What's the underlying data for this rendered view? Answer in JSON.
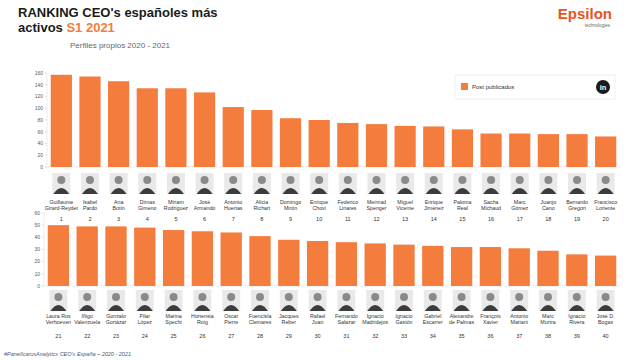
{
  "header": {
    "title_lines": [
      "RANKING CEO's españoles más",
      "activos"
    ],
    "highlight": "S1 2021",
    "subtitle": "Perfiles propios 2020 - 2021",
    "logo": "Epsilon",
    "logo_sub": "technologies",
    "social": "in"
  },
  "footer": "#PanelIcarusAnalytics CEO's España – 2020 - 2021",
  "chart_data": [
    {
      "type": "bar",
      "categories": [
        "Guillaume\nGirard-Reydet",
        "Isabel\nPardo",
        "Ana\nBotín",
        "Dimas\nGimeno",
        "Miriam\nRodriguez",
        "José\nArmando",
        "Antonio\nHuertas",
        "Alicia\nRichart",
        "Domingo\nMirón",
        "Enrique\nChovi",
        "Federico\nLinares",
        "Meinrad\nSpenger",
        "Miguel\nVicente",
        "Enrique\nJiménez",
        "Paloma\nReal",
        "Sacha\nMichaud",
        "Marc\nGómez",
        "Juanjo\nCano",
        "Bernardo\nGregori",
        "Francisco\nLoriente"
      ],
      "ranks": [
        1,
        2,
        3,
        4,
        5,
        6,
        7,
        8,
        9,
        10,
        11,
        12,
        13,
        14,
        15,
        16,
        17,
        18,
        19,
        20
      ],
      "series": [
        {
          "name": "Post publicados",
          "color": "#f47c3c",
          "values": [
            157,
            154,
            146,
            134,
            134,
            127,
            102,
            97,
            83,
            80,
            75,
            73,
            70,
            69,
            64,
            57,
            57,
            56,
            56,
            52
          ]
        }
      ],
      "ylim": [
        0,
        160
      ],
      "yticks": [
        0,
        20,
        40,
        60,
        80,
        100,
        120,
        140,
        160
      ],
      "legend": "top-right",
      "grid": false
    },
    {
      "type": "bar",
      "categories": [
        "Laura Ros\nVerhoeven",
        "Iñigo\nValenzuela",
        "Gonzalo\nGortázar",
        "Pilar\nLópez",
        "Marina\nSpecht",
        "Hortensia\nRoig",
        "Oscar\nPierre",
        "Fuencisla\nClemares",
        "Jacques\nReber",
        "Rafael\nJuan",
        "Fernando\nSalazar",
        "Ignacio\nMadridejos",
        "Ignacio\nGastón",
        "Gabriel\nEscarrer",
        "Alexandre\nde Palmas",
        "François\nXavier",
        "Antonio\nMariani",
        "Marc\nMurtra",
        "Ignacio\nRivera",
        "José D.\nBogas"
      ],
      "ranks": [
        21,
        22,
        23,
        24,
        25,
        26,
        27,
        28,
        29,
        30,
        31,
        32,
        33,
        34,
        35,
        36,
        37,
        38,
        39,
        40
      ],
      "values": [
        50,
        49,
        49,
        48,
        46,
        45,
        44,
        41,
        38,
        37,
        36,
        35,
        34,
        33,
        32,
        32,
        31,
        29,
        26,
        25
      ],
      "color": "#f47c3c",
      "ylim": [
        0,
        60
      ],
      "yticks": [
        0,
        10,
        20,
        30,
        40,
        50,
        60
      ],
      "grid": false
    }
  ]
}
